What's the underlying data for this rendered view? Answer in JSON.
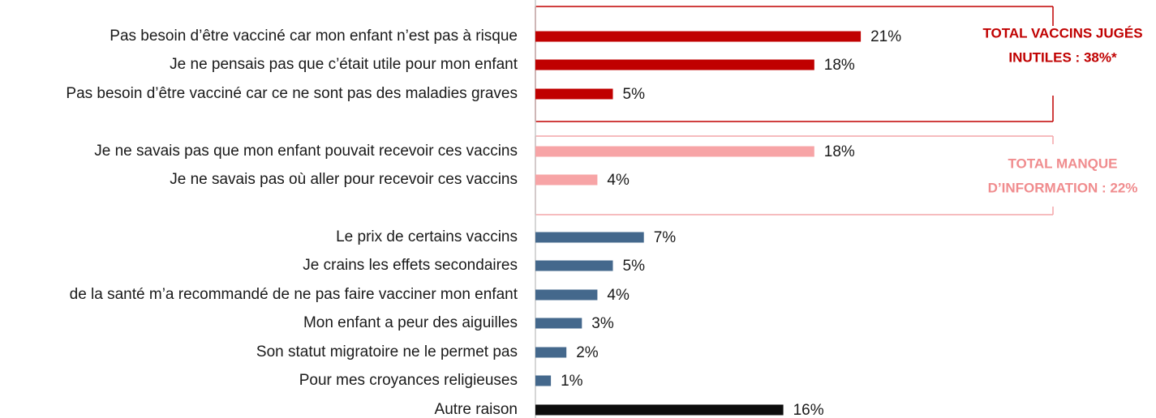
{
  "chart_data": {
    "type": "bar",
    "orientation": "horizontal",
    "categories": [
      "Pas besoin d’être vacciné car mon enfant n’est pas à risque",
      "Je ne pensais pas que c’était utile pour mon enfant",
      "Pas besoin d’être vacciné car ce ne sont pas des maladies graves",
      "Je ne savais pas que mon enfant pouvait recevoir ces vaccins",
      "Je ne savais pas où aller pour recevoir ces vaccins",
      "Le prix de certains vaccins",
      "Je crains les effets secondaires",
      "de la santé m’a recommandé de ne pas faire vacciner mon enfant",
      "Mon enfant a peur des aiguilles",
      "Son statut migratoire ne le permet pas",
      "Pour mes croyances religieuses",
      "Autre raison"
    ],
    "values": [
      21,
      18,
      5,
      18,
      4,
      7,
      5,
      4,
      3,
      2,
      1,
      16
    ],
    "value_labels": [
      "21%",
      "18%",
      "5%",
      "18%",
      "4%",
      "7%",
      "5%",
      "4%",
      "3%",
      "2%",
      "1%",
      "16%"
    ],
    "colors": [
      "#c00000",
      "#c00000",
      "#c00000",
      "#f7a4a6",
      "#f7a4a6",
      "#44688c",
      "#44688c",
      "#44688c",
      "#44688c",
      "#44688c",
      "#44688c",
      "#0d0d0d"
    ],
    "annotations": [
      {
        "lines": [
          "TOTAL VACCINS JUGÉS",
          "INUTILES : 38%*"
        ],
        "color": "#c00000"
      },
      {
        "lines": [
          "TOTAL MANQUE",
          "D’INFORMATION : 22%"
        ],
        "color": "#f08c8e"
      }
    ]
  }
}
